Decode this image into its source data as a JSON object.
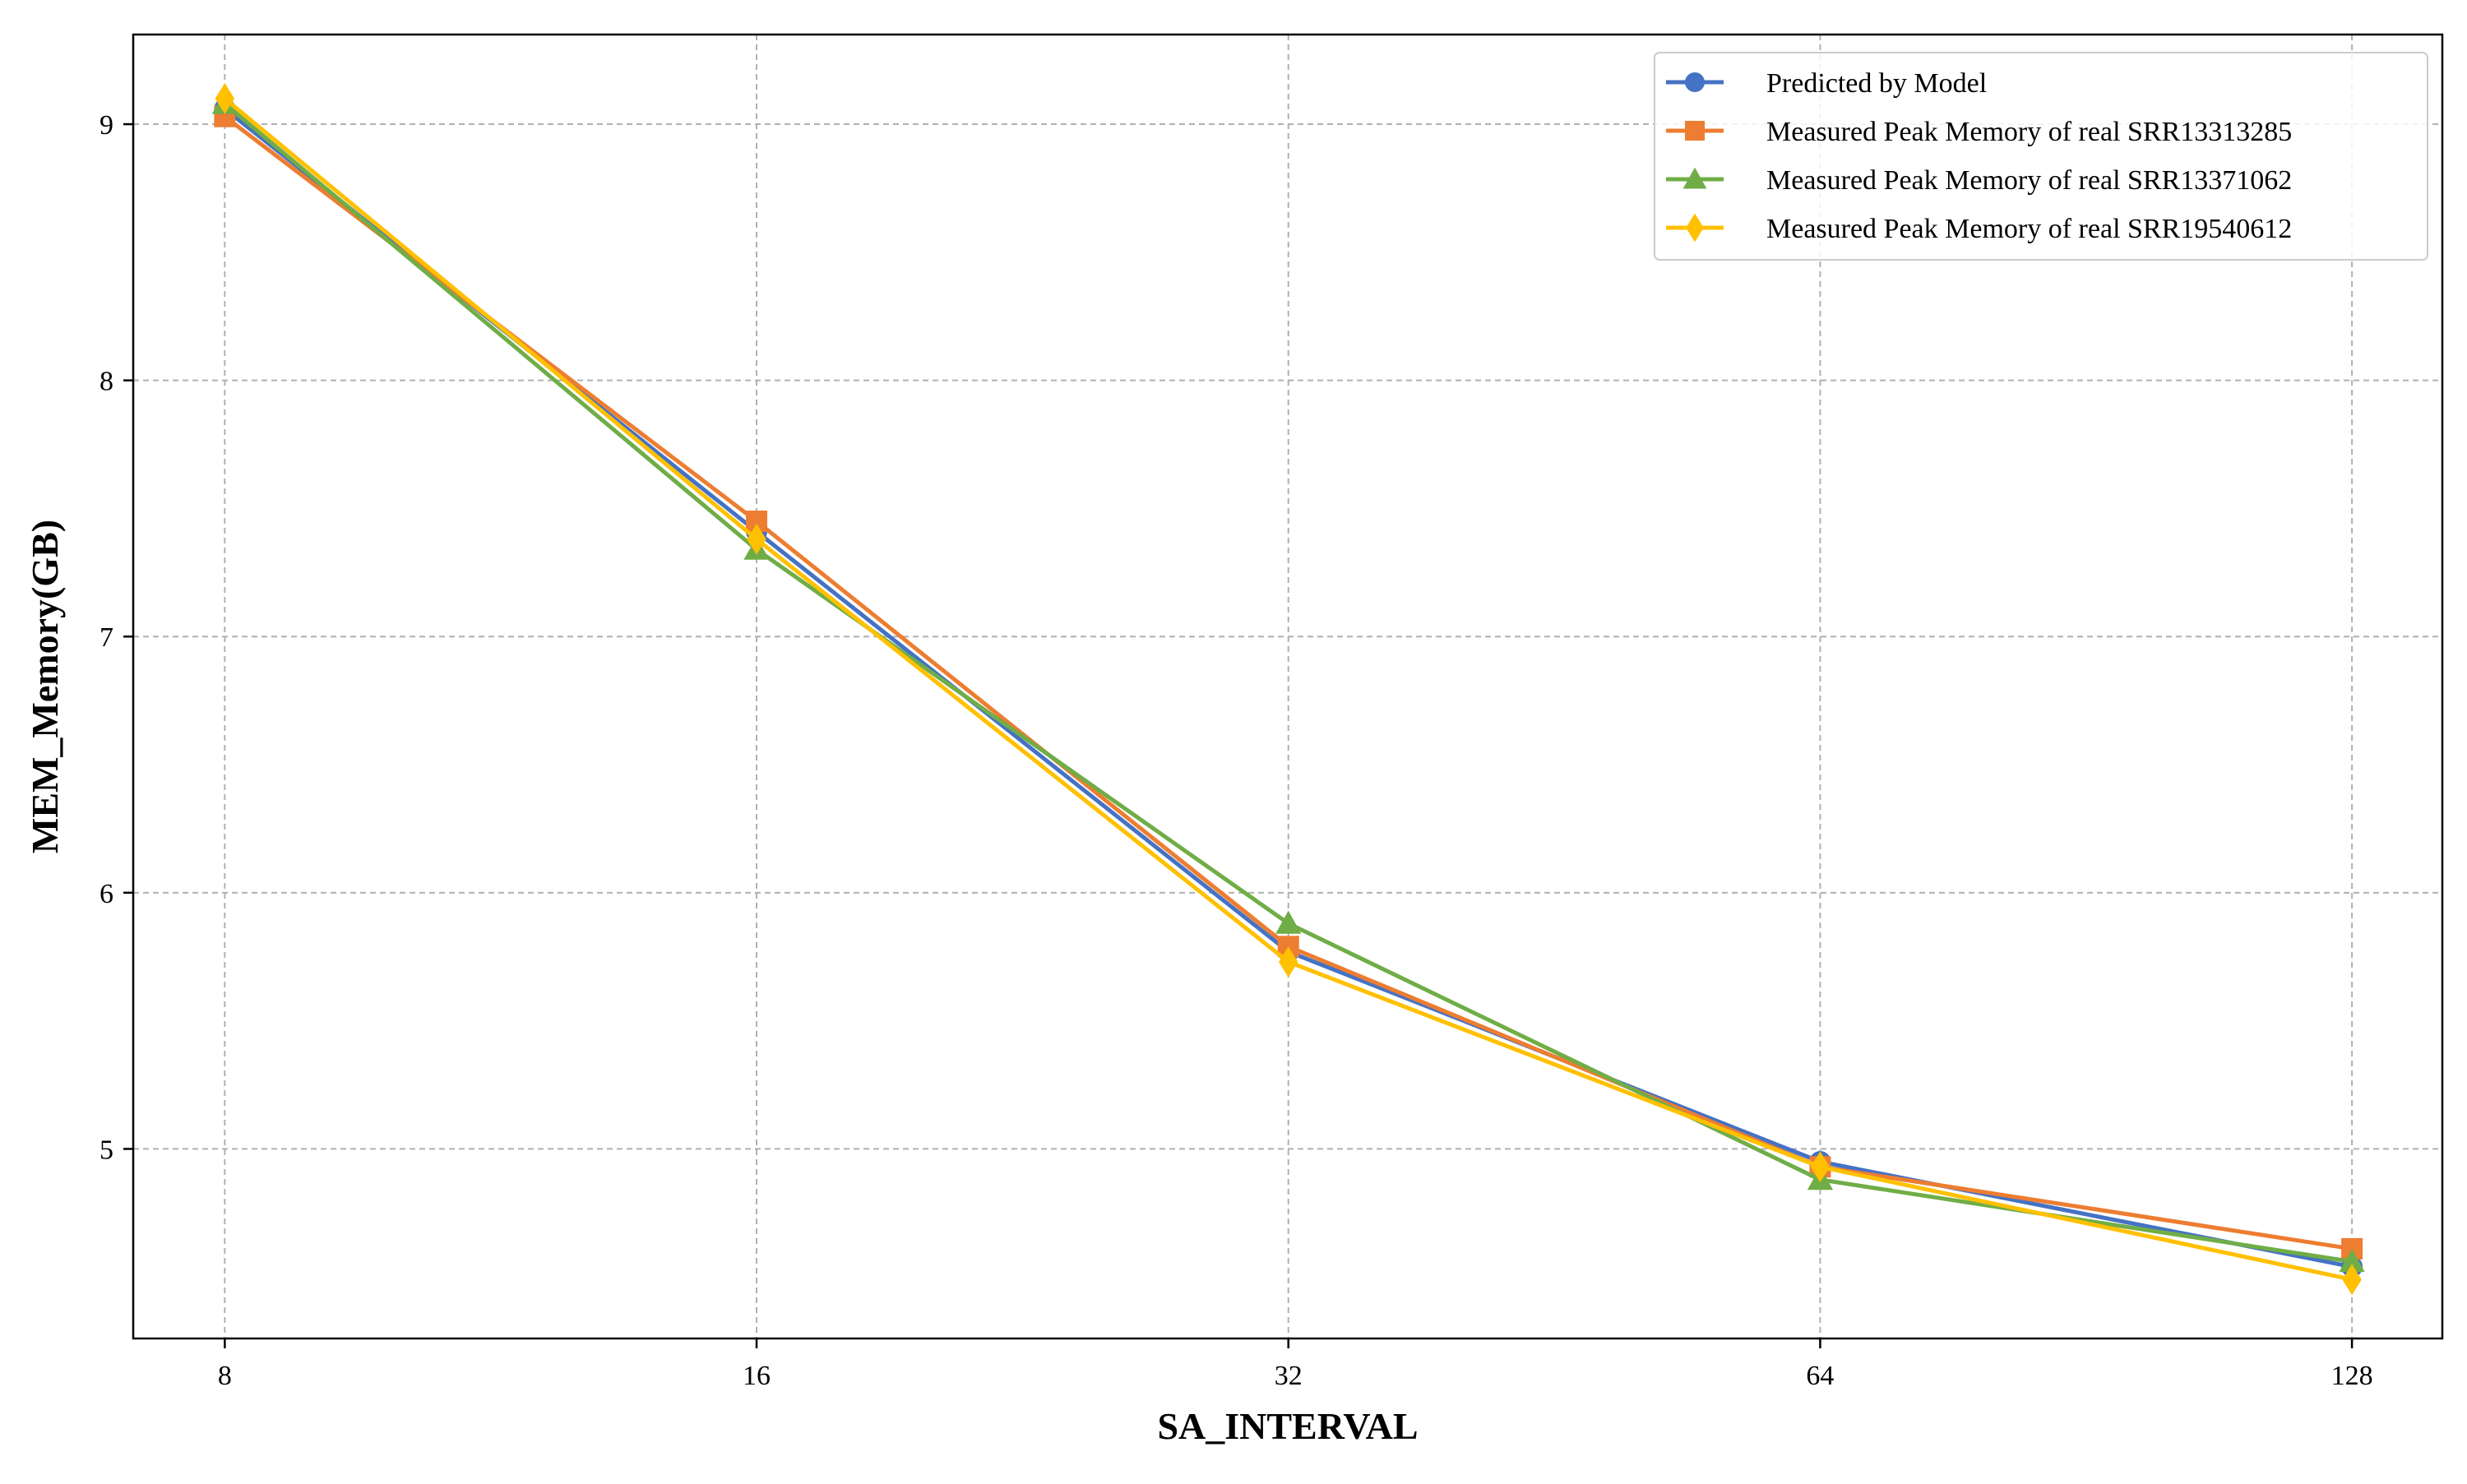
{
  "chart_data": {
    "type": "line",
    "xlabel": "SA_INTERVAL",
    "ylabel": "MEM_Memory(GB)",
    "x": [
      8,
      16,
      32,
      64,
      128
    ],
    "x_tick_labels": [
      "8",
      "16",
      "32",
      "64",
      "128"
    ],
    "x_scale": "log2",
    "xlim": [
      7.1,
      144
    ],
    "ylim": [
      4.26,
      9.35
    ],
    "y_ticks": [
      5,
      6,
      7,
      8,
      9
    ],
    "y_tick_labels": [
      "5",
      "6",
      "7",
      "8",
      "9"
    ],
    "grid": true,
    "legend_position": "top-right",
    "series": [
      {
        "name": "Predicted by Model",
        "color": "#4472C4",
        "marker": "circle",
        "values": [
          9.06,
          7.41,
          5.77,
          4.95,
          4.54
        ]
      },
      {
        "name": "Measured Peak Memory of real SRR13313285",
        "color": "#ED7D31",
        "marker": "square",
        "values": [
          9.03,
          7.45,
          5.79,
          4.93,
          4.61
        ]
      },
      {
        "name": "Measured Peak Memory of real SRR13371062",
        "color": "#70AD47",
        "marker": "triangle",
        "values": [
          9.08,
          7.34,
          5.88,
          4.88,
          4.56
        ]
      },
      {
        "name": "Measured Peak Memory of real SRR19540612",
        "color": "#FFC000",
        "marker": "diamond",
        "values": [
          9.1,
          7.38,
          5.73,
          4.93,
          4.49
        ]
      }
    ]
  }
}
